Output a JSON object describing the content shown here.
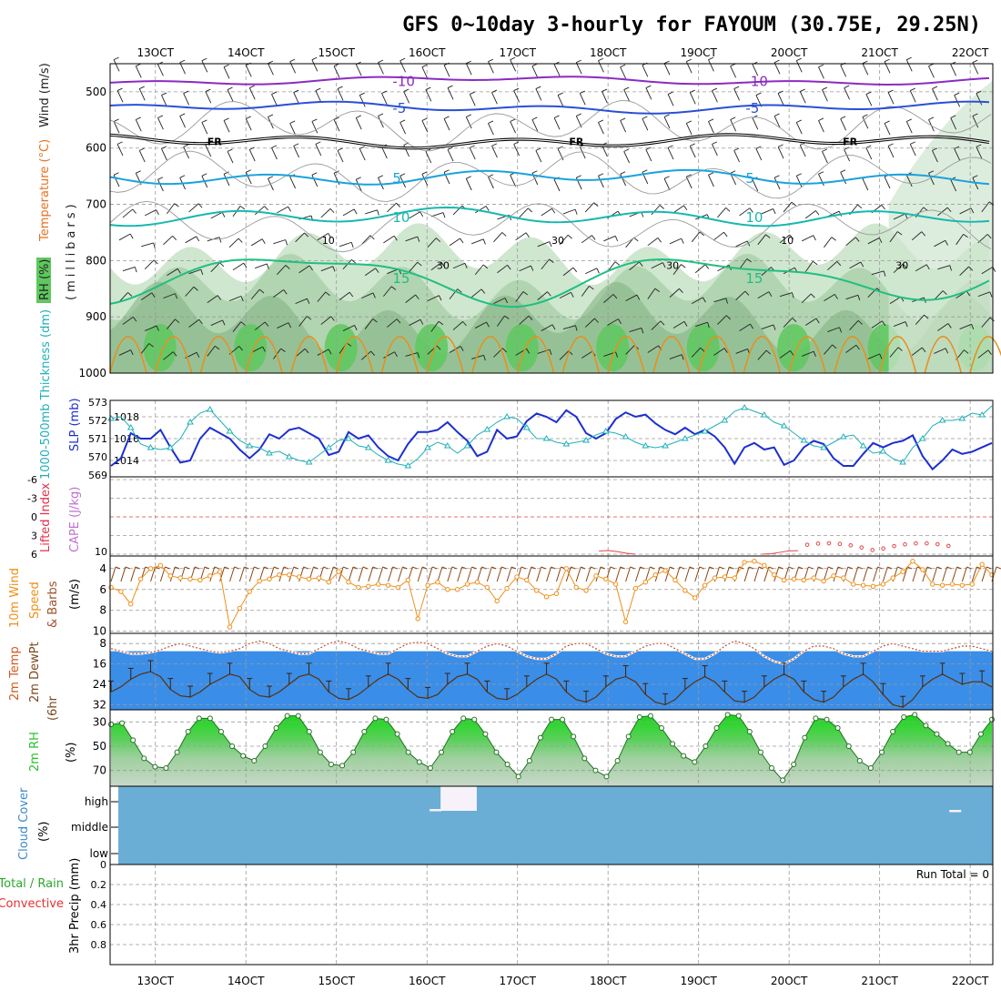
{
  "title": "GFS 0~10day 3-hourly for FAYOUM (30.75E, 29.25N)",
  "colors": {
    "rh_fill": "#cfe6cf",
    "rh_mid": "#a9cfa9",
    "rh_dark": "#7fb07f",
    "rh_green": "#5ec85e",
    "temp_purple": "#8a2bc2",
    "temp_blue": "#2a4fd6",
    "temp_cyan": "#1aa2dc",
    "temp_teal": "#17b8b0",
    "temp_green": "#1fbf80",
    "temp_orange": "#e6901e",
    "slp": "#1c2fd0",
    "thick": "#20b0b8",
    "wind10": "#ee8f1a",
    "barb": "#8b4513",
    "cloud": "#6aaed6",
    "rh2m": "#2bc02b",
    "grid": "#999999"
  },
  "chart_data": [
    {
      "type": "contour",
      "name": "vertical_profile",
      "ylabel": "(millibars)",
      "legend_labels": [
        "RH (%)",
        "Temperature (°C)",
        "Wind (m/s)"
      ],
      "y_ticks": [
        "500",
        "600",
        "700",
        "800",
        "900",
        "1000"
      ],
      "ylim": [
        450,
        1000
      ],
      "freezing_label": "FR",
      "isotherms": [
        {
          "label": "-10",
          "level": 480
        },
        {
          "label": "-5",
          "level": 528
        },
        {
          "label": "0",
          "level": 588
        },
        {
          "label": "5",
          "level": 652
        },
        {
          "label": "10",
          "level": 722
        },
        {
          "label": "15",
          "level": 830
        }
      ],
      "rh_contour_labels": [
        "10",
        "30",
        "30",
        "30",
        "10",
        "30"
      ]
    },
    {
      "type": "line",
      "name": "slp_thickness",
      "label_thickness": "1000-500mb Thickness (dm)",
      "label_slp": "SLP (mb)",
      "left_ticks": [
        "573",
        "572",
        "571",
        "570",
        "569"
      ],
      "right_ticks": [
        "1018",
        "1016",
        "1014"
      ],
      "ylim_thickness": [
        569,
        573
      ],
      "ylim_slp": [
        1012.5,
        1019.5
      ],
      "series": [
        {
          "name": "SLP",
          "values": [
            1013.5,
            1014.2,
            1016.5,
            1016.0,
            1016.0,
            1016.8,
            1015.2,
            1013.8,
            1014.0,
            1016.0,
            1017.0,
            1016.5,
            1016.0,
            1015.0,
            1014.2,
            1015.0,
            1016.4,
            1016.0,
            1016.8,
            1017.0,
            1016.5,
            1016.0,
            1014.5,
            1014.8,
            1016.6,
            1016.0,
            1016.3,
            1015.2,
            1014.4,
            1014.0,
            1015.5,
            1016.6,
            1016.6,
            1016.8,
            1017.5,
            1016.6,
            1015.8,
            1014.4,
            1014.8,
            1016.8,
            1016.0,
            1016.2,
            1017.6,
            1018.3,
            1018.0,
            1017.5,
            1018.6,
            1018.0,
            1016.5,
            1016.0,
            1016.5,
            1017.8,
            1018.4,
            1018.0,
            1018.2,
            1017.4,
            1016.8,
            1016.4,
            1017.0,
            1016.4,
            1016.8,
            1016.2,
            1015.2,
            1013.7,
            1015.2,
            1015.6,
            1015.0,
            1015.2,
            1013.6,
            1014.0,
            1015.2,
            1015.8,
            1015.5,
            1014.2,
            1013.5,
            1013.5,
            1014.6,
            1015.6,
            1015.2,
            1015.6,
            1015.8,
            1016.3,
            1014.4,
            1013.2,
            1014.0,
            1015.0,
            1014.6,
            1014.8,
            1015.2,
            1015.6
          ]
        },
        {
          "name": "Thickness",
          "values": [
            572.1,
            572.2,
            571.6,
            570.7,
            570.5,
            570.4,
            570.5,
            571.0,
            571.9,
            572.4,
            572.6,
            572.0,
            571.4,
            570.9,
            570.6,
            570.5,
            570.2,
            570.3,
            570.0,
            569.8,
            569.7,
            570.1,
            570.5,
            570.9,
            571.0,
            570.6,
            570.5,
            570.1,
            569.8,
            569.6,
            569.5,
            569.9,
            570.5,
            570.8,
            570.6,
            570.2,
            570.6,
            571.2,
            571.5,
            571.9,
            572.2,
            572.1,
            571.6,
            571.0,
            571.0,
            570.8,
            570.7,
            570.8,
            570.9,
            571.2,
            571.4,
            571.3,
            571.1,
            570.8,
            570.6,
            570.5,
            570.6,
            570.8,
            571.0,
            571.2,
            571.4,
            571.7,
            572.0,
            572.5,
            572.7,
            572.5,
            572.3,
            571.9,
            571.7,
            571.3,
            570.9,
            570.6,
            570.5,
            570.8,
            571.1,
            571.2,
            570.6,
            570.2,
            570.3,
            569.9,
            569.7,
            570.5,
            571.0,
            571.7,
            572.0,
            572.0,
            572.1,
            572.4,
            572.3,
            572.8
          ]
        }
      ]
    },
    {
      "type": "line",
      "name": "stability",
      "label_li": "Lifted Index",
      "label_cape": "CAPE (J/kg)",
      "left_ticks": [
        "-6",
        "-3",
        "0",
        "3",
        "6"
      ],
      "right_ticks": [
        "10"
      ],
      "ylim_li": [
        -6,
        6
      ],
      "cape_ylim": [
        0,
        10
      ],
      "series": [
        {
          "name": "CAPE",
          "values": [
            0,
            0,
            0,
            0,
            0,
            0,
            0,
            0,
            0,
            0,
            0,
            0,
            0,
            0,
            0,
            0,
            0,
            0,
            0,
            0,
            0,
            0,
            0,
            0,
            0,
            0,
            0,
            0,
            0,
            0,
            0,
            0,
            0,
            0,
            0,
            0,
            0,
            0,
            0,
            0,
            0,
            0,
            0,
            0,
            0,
            0,
            0,
            0,
            0,
            0,
            0,
            0,
            0,
            0,
            0,
            0,
            0,
            0,
            0,
            0,
            0,
            0,
            0,
            0,
            0,
            0,
            0,
            0,
            0,
            0,
            0,
            0,
            0,
            0,
            0,
            0,
            0,
            0,
            0,
            0,
            0,
            0,
            0,
            0,
            0,
            0,
            0,
            0,
            0,
            0
          ]
        }
      ]
    },
    {
      "type": "line",
      "name": "wind10m",
      "ylabel": "10m Wind Speed & Barbs (m/s)",
      "y_ticks": [
        "10",
        "8",
        "6",
        "4"
      ],
      "ylim": [
        2.8,
        10.2
      ],
      "series": [
        {
          "name": "10m Wind",
          "values": [
            5.8,
            6.2,
            7.4,
            5.0,
            4.0,
            3.7,
            4.7,
            4.9,
            5.0,
            5.1,
            4.7,
            4.3,
            9.6,
            7.8,
            6.2,
            5.2,
            5.0,
            4.6,
            4.6,
            4.8,
            5.0,
            4.9,
            5.3,
            4.3,
            5.3,
            5.8,
            5.7,
            5.5,
            5.6,
            5.8,
            5.1,
            8.8,
            5.6,
            5.3,
            6.0,
            6.0,
            5.5,
            5.3,
            5.8,
            7.1,
            5.9,
            4.8,
            5.1,
            6.1,
            6.7,
            6.4,
            4.0,
            5.8,
            6.1,
            4.7,
            5.0,
            5.5,
            9.1,
            5.9,
            5.3,
            4.6,
            4.2,
            5.1,
            6.1,
            6.8,
            5.6,
            4.9,
            4.8,
            4.9,
            3.4,
            3.3,
            3.7,
            4.6,
            5.1,
            5.0,
            5.1,
            4.9,
            5.2,
            4.7,
            4.9,
            5.5,
            5.6,
            5.7,
            5.5,
            4.9,
            4.3,
            3.3,
            4.1,
            5.5,
            5.6,
            5.5,
            5.6,
            5.5,
            3.6,
            4.6
          ]
        }
      ]
    },
    {
      "type": "area",
      "name": "temp2m",
      "ylabel": "2m Temp 2m DewPt (6hr Min/Max)",
      "y_ticks": [
        "32",
        "24",
        "16",
        "8"
      ],
      "ylim": [
        4,
        34
      ],
      "series": [
        {
          "name": "2m Temp",
          "values": [
            27,
            25,
            22,
            20,
            19,
            21,
            26,
            28.5,
            29,
            27,
            24,
            22,
            20,
            21,
            26,
            28.5,
            29,
            27,
            24,
            21,
            20,
            22,
            27,
            29.5,
            30,
            28,
            25,
            22,
            20,
            22,
            26,
            29,
            29.5,
            28,
            24,
            21,
            20,
            22,
            27,
            29.5,
            30,
            28,
            25,
            22,
            20,
            22,
            27,
            30,
            31,
            29,
            25,
            22,
            21,
            23,
            28,
            31,
            32,
            30,
            26,
            23,
            21,
            23,
            27,
            30.5,
            31,
            29,
            25,
            22,
            20,
            22,
            27,
            30,
            31,
            29,
            25,
            22,
            20,
            23,
            28,
            32,
            33,
            30,
            25,
            22,
            20,
            22,
            24,
            23,
            23,
            25
          ]
        },
        {
          "name": "2m DewPt",
          "values": [
            10,
            11,
            12,
            12,
            11.5,
            10.5,
            9,
            8,
            9,
            10,
            11,
            11.5,
            11,
            10,
            8,
            7,
            8,
            10,
            11,
            12,
            12,
            10,
            8,
            7,
            8,
            10,
            11,
            12,
            12,
            10,
            8,
            7.5,
            8,
            10,
            12,
            13,
            13,
            11,
            9,
            8,
            9,
            11,
            13,
            14,
            14,
            12,
            9,
            8,
            8,
            10,
            12,
            13,
            13,
            11,
            9,
            8,
            8,
            10,
            12,
            14,
            14,
            12,
            9,
            7,
            8,
            10,
            13,
            15,
            16,
            14,
            11,
            9,
            9,
            10,
            12,
            13,
            13,
            11,
            9,
            8,
            9,
            10,
            11,
            11,
            11,
            10,
            9,
            9,
            10,
            11
          ]
        }
      ]
    },
    {
      "type": "area",
      "name": "rh2m",
      "ylabel": "2m RH (%)",
      "y_ticks": [
        "70",
        "50",
        "30"
      ],
      "ylim": [
        20,
        83
      ],
      "series": [
        {
          "name": "2m RH",
          "values": [
            32,
            31,
            45,
            60,
            67,
            68,
            55,
            38,
            27,
            27,
            38,
            50,
            58,
            62,
            50,
            35,
            25,
            25,
            38,
            55,
            65,
            66,
            55,
            38,
            27,
            28,
            40,
            55,
            63,
            68,
            55,
            38,
            27,
            28,
            40,
            55,
            65,
            75,
            62,
            43,
            28,
            28,
            42,
            60,
            70,
            75,
            62,
            42,
            26,
            25,
            35,
            48,
            58,
            63,
            50,
            35,
            24,
            25,
            38,
            55,
            68,
            78,
            65,
            43,
            27,
            28,
            35,
            50,
            62,
            68,
            55,
            38,
            26,
            24,
            33,
            40,
            48,
            55,
            55,
            40,
            28
          ]
        }
      ]
    },
    {
      "type": "heatmap",
      "name": "cloud_cover",
      "ylabel": "Cloud Cover (%)",
      "rows": [
        "high",
        "middle",
        "low"
      ],
      "cloud_patches": [
        {
          "level": "high",
          "from_day": 16.15,
          "to_day": 16.55
        },
        {
          "level": "high",
          "from_day": 21.77,
          "to_day": 21.9
        }
      ]
    },
    {
      "type": "bar",
      "name": "precip",
      "ylabel": "3hr Precip (mm)",
      "legend_labels": [
        "Total / Rain",
        "Convective"
      ],
      "run_total_label": "Run Total = 0",
      "y_ticks": [
        "0.8",
        "0.6",
        "0.4",
        "0.2",
        "0"
      ],
      "ylim": [
        0,
        1
      ],
      "values": []
    }
  ],
  "x_axis": {
    "labels": [
      "13OCT",
      "14OCT",
      "15OCT",
      "16OCT",
      "17OCT",
      "18OCT",
      "19OCT",
      "20OCT",
      "21OCT",
      "22OCT"
    ],
    "day_range": [
      12.5,
      22.25
    ]
  }
}
